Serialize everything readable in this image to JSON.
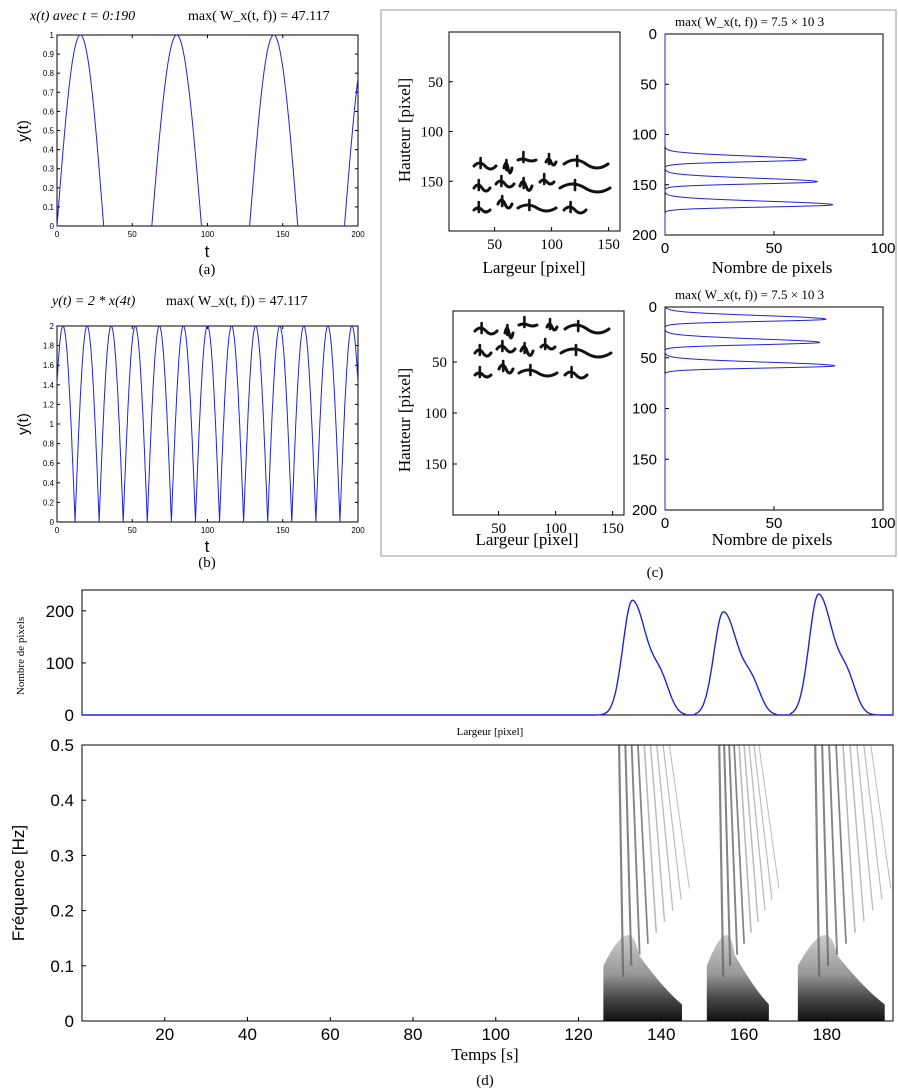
{
  "colors": {
    "series": "#1f24d9",
    "axis": "#000000",
    "ink": "#111111",
    "frame": "#999999"
  },
  "chart_data": [
    {
      "id": "a",
      "type": "line",
      "title": "max( W_x(t, f)) = 47.117",
      "title_prefix": "x(t) avec t = 0:190",
      "max_text": "max( W_x(t, f)) = 47.117",
      "xlabel": "t",
      "ylabel": "y(t)",
      "caption": "(a)",
      "xlim": [
        0,
        200
      ],
      "ylim": [
        0,
        1
      ],
      "xticks": [
        "0",
        "50",
        "100",
        "150",
        "200"
      ],
      "yticks": [
        "0",
        "0.1",
        "0.2",
        "0.3",
        "0.4",
        "0.5",
        "0.6",
        "0.7",
        "0.8",
        "0.9",
        "1"
      ],
      "series": [
        {
          "description": "|sin| arches",
          "peaks_x": [
            16,
            80,
            143
          ],
          "period": 128,
          "peak": 1,
          "zero_ranges": [
            [
              31,
              63
            ],
            [
              96,
              128
            ],
            [
              160,
              191
            ]
          ]
        }
      ]
    },
    {
      "id": "b",
      "type": "line",
      "title_prefix": "y(t) = 2 * x(4t)",
      "max_text": "max( W_x(t, f)) = 47.117",
      "xlabel": "t",
      "ylabel": "y(t)",
      "caption": "(b)",
      "xlim": [
        0,
        200
      ],
      "ylim": [
        0,
        2
      ],
      "xticks": [
        "0",
        "50",
        "100",
        "150",
        "200"
      ],
      "yticks": [
        "0",
        "0.2",
        "0.4",
        "0.6",
        "0.8",
        "1",
        "1.2",
        "1.4",
        "1.6",
        "1.8",
        "2"
      ],
      "series": [
        {
          "period": 16,
          "peak": 2,
          "first_peak": 4
        }
      ]
    },
    {
      "id": "c",
      "type": "line",
      "caption": "(c)",
      "panels": [
        {
          "image_xlabel": "Largeur [pixel]",
          "image_ylabel": "Hauteur [pixel]",
          "image_xticks": [
            "50",
            "100",
            "150"
          ],
          "image_yticks": [
            "50",
            "100",
            "150"
          ],
          "max_text": "max( W_x(t, f)) = 7.5 × 10 3",
          "profile_xlabel": "Nombre de pixels",
          "profile_xticks": [
            "0",
            "50",
            "100"
          ],
          "profile_yticks": [
            "0",
            "50",
            "100",
            "150",
            "200"
          ],
          "profile_xlim": [
            0,
            100
          ],
          "profile_ylim": [
            0,
            200
          ],
          "text_row_y": [
            125,
            147,
            170
          ],
          "text_row_peak": [
            65,
            70,
            77
          ]
        },
        {
          "image_xlabel": "Largeur [pixel]",
          "image_ylabel": "Hauteur [pixel]",
          "image_xticks": [
            "50",
            "100",
            "150"
          ],
          "image_yticks": [
            "50",
            "100",
            "150"
          ],
          "max_text": "max( W_x(t, f)) = 7.5 × 10 3",
          "profile_xlabel": "Nombre de pixels",
          "profile_xticks": [
            "0",
            "50",
            "100"
          ],
          "profile_yticks": [
            "0",
            "50",
            "100",
            "150",
            "200"
          ],
          "profile_xlim": [
            0,
            100
          ],
          "profile_ylim": [
            0,
            200
          ],
          "text_row_y": [
            12,
            35,
            58
          ],
          "text_row_peak": [
            74,
            71,
            78
          ]
        }
      ]
    },
    {
      "id": "d-top",
      "type": "line",
      "ylabel": "Nombre de pixels",
      "xlabel": "Largeur [pixel]",
      "xlim": [
        0,
        196
      ],
      "ylim": [
        0,
        240
      ],
      "yticks": [
        "0",
        "100",
        "200"
      ],
      "series": [
        {
          "peaks": [
            {
              "x": 133,
              "y": 220
            },
            {
              "x": 155,
              "y": 198
            },
            {
              "x": 178,
              "y": 232
            }
          ]
        }
      ]
    },
    {
      "id": "d-bottom",
      "type": "heatmap",
      "xlabel": "Temps [s]",
      "ylabel": "Fréquence [Hz]",
      "caption": "(d)",
      "xlim": [
        0,
        196
      ],
      "ylim": [
        0,
        0.5
      ],
      "xticks": [
        "20",
        "40",
        "60",
        "80",
        "100",
        "120",
        "140",
        "160",
        "180"
      ],
      "yticks": [
        "0",
        "0.1",
        "0.2",
        "0.3",
        "0.4",
        "0.5"
      ],
      "energy_blobs_x": [
        [
          126,
          145
        ],
        [
          151,
          166
        ],
        [
          173,
          194
        ]
      ]
    }
  ]
}
